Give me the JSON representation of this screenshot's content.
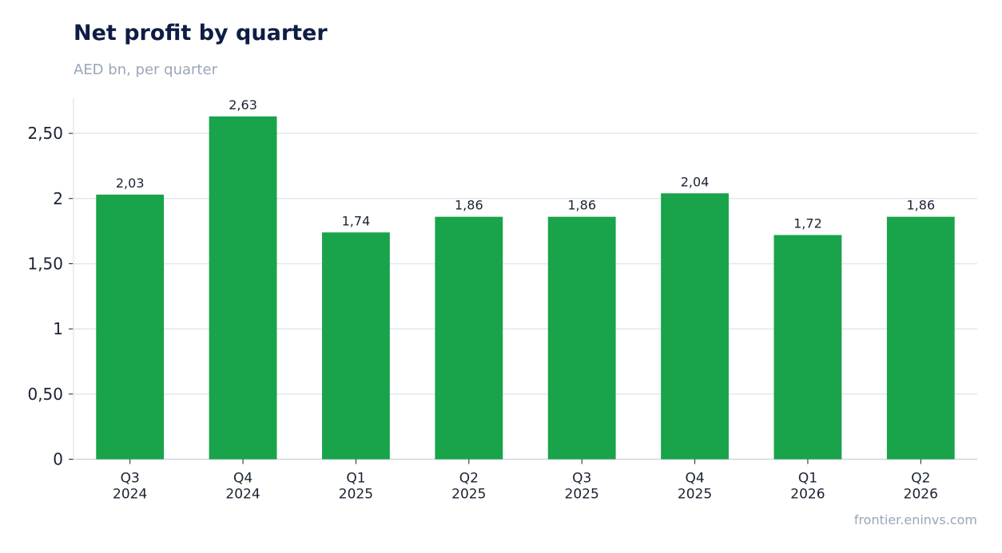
{
  "header": {
    "title": "Net profit by quarter",
    "subtitle": "AED bn, per quarter"
  },
  "footer": {
    "source": "frontier.eninvs.com"
  },
  "colors": {
    "bar": "#19a34a",
    "grid": "#e3e7ee",
    "axis": "#cfd5de",
    "text": "#1a2233"
  },
  "chart_data": {
    "type": "bar",
    "title": "Net profit by quarter",
    "subtitle": "AED bn, per quarter",
    "categories": [
      [
        "Q3",
        "2024"
      ],
      [
        "Q4",
        "2024"
      ],
      [
        "Q1",
        "2025"
      ],
      [
        "Q2",
        "2025"
      ],
      [
        "Q3",
        "2025"
      ],
      [
        "Q4",
        "2025"
      ],
      [
        "Q1",
        "2026"
      ],
      [
        "Q2",
        "2026"
      ]
    ],
    "values": [
      2.03,
      2.63,
      1.74,
      1.86,
      1.86,
      2.04,
      1.72,
      1.86
    ],
    "data_labels": [
      "2,03",
      "2,63",
      "1,74",
      "1,86",
      "1,86",
      "2,04",
      "1,72",
      "1,86"
    ],
    "yticks": [
      0,
      0.5,
      1,
      1.5,
      2,
      2.5
    ],
    "ytick_labels": [
      "0",
      "0,50",
      "1",
      "1,50",
      "2",
      "2,50"
    ],
    "ylim": [
      0,
      2.77
    ],
    "grid": "horizontal",
    "legend": "none"
  }
}
